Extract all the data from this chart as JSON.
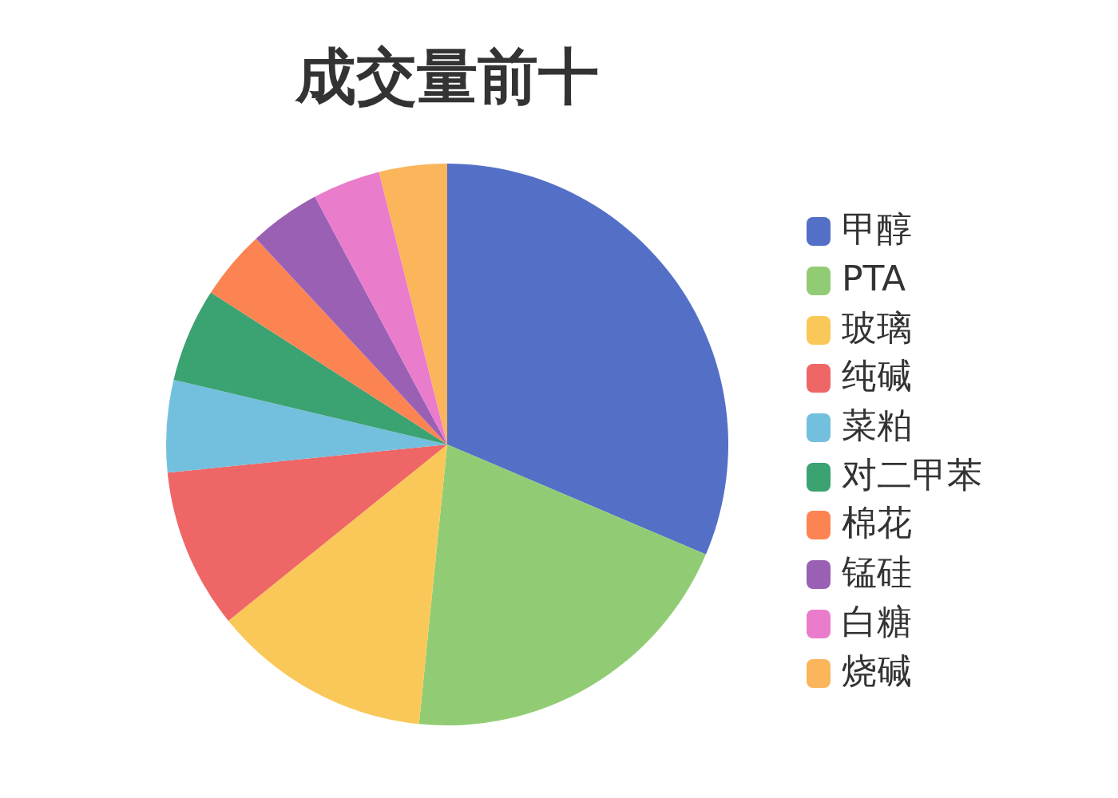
{
  "chart_data": {
    "type": "pie",
    "title": "成交量前十",
    "categories": [
      "甲醇",
      "PTA",
      "玻璃",
      "纯碱",
      "菜粕",
      "对二甲苯",
      "棉花",
      "锰硅",
      "白糖",
      "烧碱"
    ],
    "values": [
      31.4,
      20.2,
      12.6,
      9.2,
      5.3,
      5.4,
      4.0,
      4.1,
      3.9,
      3.9
    ],
    "colors": [
      "#5470c6",
      "#91cc75",
      "#fac858",
      "#ee6666",
      "#73c0de",
      "#3ba272",
      "#fc8452",
      "#9a60b4",
      "#ea7ccc",
      "#fbb55a"
    ],
    "legend": "right"
  }
}
